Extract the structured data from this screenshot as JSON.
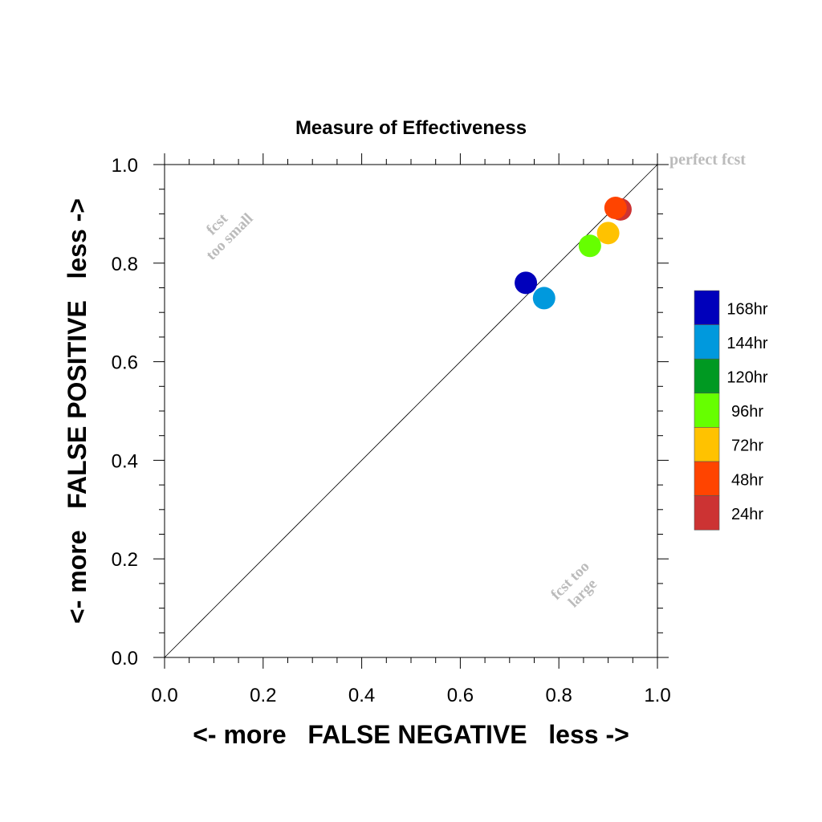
{
  "chart_data": {
    "type": "scatter",
    "title": "Measure of Effectiveness",
    "xlabel": "<- more   FALSE NEGATIVE   less ->",
    "ylabel": "<- more   FALSE POSITIVE   less ->",
    "xlim": [
      0.0,
      1.0
    ],
    "ylim": [
      0.0,
      1.0
    ],
    "xticks": [
      "0.0",
      "0.2",
      "0.4",
      "0.6",
      "0.8",
      "1.0"
    ],
    "yticks": [
      "0.0",
      "0.2",
      "0.4",
      "0.6",
      "0.8",
      "1.0"
    ],
    "grid": false,
    "reference_line": "diagonal",
    "annotations": {
      "perfect": "perfect fcst",
      "small_line1": "fcst",
      "small_line2": "too small",
      "large_line1": "fcst too",
      "large_line2": "large"
    },
    "legend_position": "right",
    "series": [
      {
        "name": "168hr",
        "color": "#0000bb",
        "x": 0.733,
        "y": 0.76
      },
      {
        "name": "144hr",
        "color": "#0099dd",
        "x": 0.77,
        "y": 0.729
      },
      {
        "name": "120hr",
        "color": "#009922",
        "x": null,
        "y": null
      },
      {
        "name": "96hr",
        "color": "#66ff00",
        "x": 0.863,
        "y": 0.835
      },
      {
        "name": "72hr",
        "color": "#ffc200",
        "x": 0.9,
        "y": 0.861
      },
      {
        "name": "48hr",
        "color": "#ff4400",
        "x": 0.915,
        "y": 0.912
      },
      {
        "name": "24hr",
        "color": "#cc3333",
        "x": 0.925,
        "y": 0.909
      }
    ]
  }
}
